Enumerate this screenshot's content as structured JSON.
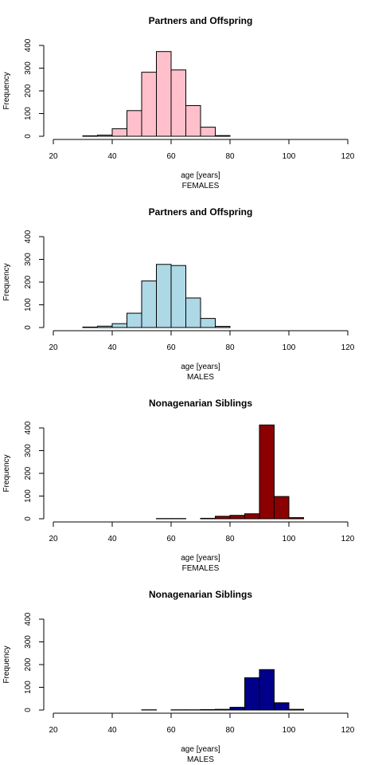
{
  "chart_data": [
    {
      "type": "bar",
      "title": "Partners and Offspring",
      "xlabel": "age [years]",
      "subtitle": "FEMALES",
      "ylabel": "Frequency",
      "xlim": [
        20,
        120
      ],
      "ylim": [
        0,
        400
      ],
      "xticks": [
        20,
        40,
        60,
        80,
        100,
        120
      ],
      "yticks": [
        0,
        100,
        200,
        300,
        400
      ],
      "bin_width": 5,
      "bar_color": "#FFC0CB",
      "bins": [
        {
          "x0": 30,
          "x1": 35,
          "value": 2
        },
        {
          "x0": 35,
          "x1": 40,
          "value": 5
        },
        {
          "x0": 40,
          "x1": 45,
          "value": 33
        },
        {
          "x0": 45,
          "x1": 50,
          "value": 113
        },
        {
          "x0": 50,
          "x1": 55,
          "value": 282
        },
        {
          "x0": 55,
          "x1": 60,
          "value": 373
        },
        {
          "x0": 60,
          "x1": 65,
          "value": 292
        },
        {
          "x0": 65,
          "x1": 70,
          "value": 135
        },
        {
          "x0": 70,
          "x1": 75,
          "value": 40
        },
        {
          "x0": 75,
          "x1": 80,
          "value": 3
        }
      ]
    },
    {
      "type": "bar",
      "title": "Partners and Offspring",
      "xlabel": "age [years]",
      "subtitle": "MALES",
      "ylabel": "Frequency",
      "xlim": [
        20,
        120
      ],
      "ylim": [
        0,
        400
      ],
      "xticks": [
        20,
        40,
        60,
        80,
        100,
        120
      ],
      "yticks": [
        0,
        100,
        200,
        300,
        400
      ],
      "bin_width": 5,
      "bar_color": "#ADD8E6",
      "bins": [
        {
          "x0": 30,
          "x1": 35,
          "value": 2
        },
        {
          "x0": 35,
          "x1": 40,
          "value": 6
        },
        {
          "x0": 40,
          "x1": 45,
          "value": 17
        },
        {
          "x0": 45,
          "x1": 50,
          "value": 63
        },
        {
          "x0": 50,
          "x1": 55,
          "value": 205
        },
        {
          "x0": 55,
          "x1": 60,
          "value": 278
        },
        {
          "x0": 60,
          "x1": 65,
          "value": 273
        },
        {
          "x0": 65,
          "x1": 70,
          "value": 130
        },
        {
          "x0": 70,
          "x1": 75,
          "value": 40
        },
        {
          "x0": 75,
          "x1": 80,
          "value": 5
        }
      ]
    },
    {
      "type": "bar",
      "title": "Nonagenarian Siblings",
      "xlabel": "age [years]",
      "subtitle": "FEMALES",
      "ylabel": "Frequency",
      "xlim": [
        20,
        120
      ],
      "ylim": [
        0,
        400
      ],
      "xticks": [
        20,
        40,
        60,
        80,
        100,
        120
      ],
      "yticks": [
        0,
        100,
        200,
        300,
        400
      ],
      "bin_width": 5,
      "bar_color": "#8B0000",
      "bins": [
        {
          "x0": 55,
          "x1": 60,
          "value": 1
        },
        {
          "x0": 60,
          "x1": 65,
          "value": 1
        },
        {
          "x0": 65,
          "x1": 70,
          "value": 0
        },
        {
          "x0": 70,
          "x1": 75,
          "value": 2
        },
        {
          "x0": 75,
          "x1": 80,
          "value": 11
        },
        {
          "x0": 80,
          "x1": 85,
          "value": 15
        },
        {
          "x0": 85,
          "x1": 90,
          "value": 22
        },
        {
          "x0": 90,
          "x1": 95,
          "value": 413
        },
        {
          "x0": 95,
          "x1": 100,
          "value": 98
        },
        {
          "x0": 100,
          "x1": 105,
          "value": 5
        }
      ]
    },
    {
      "type": "bar",
      "title": "Nonagenarian Siblings",
      "xlabel": "age [years]",
      "subtitle": "MALES",
      "ylabel": "Frequency",
      "xlim": [
        20,
        120
      ],
      "ylim": [
        0,
        400
      ],
      "xticks": [
        20,
        40,
        60,
        80,
        100,
        120
      ],
      "yticks": [
        0,
        100,
        200,
        300,
        400
      ],
      "bin_width": 5,
      "bar_color": "#00008B",
      "bins": [
        {
          "x0": 50,
          "x1": 55,
          "value": 1
        },
        {
          "x0": 55,
          "x1": 60,
          "value": 0
        },
        {
          "x0": 60,
          "x1": 65,
          "value": 1
        },
        {
          "x0": 65,
          "x1": 70,
          "value": 1
        },
        {
          "x0": 70,
          "x1": 75,
          "value": 2
        },
        {
          "x0": 75,
          "x1": 80,
          "value": 3
        },
        {
          "x0": 80,
          "x1": 85,
          "value": 12
        },
        {
          "x0": 85,
          "x1": 90,
          "value": 142
        },
        {
          "x0": 90,
          "x1": 95,
          "value": 178
        },
        {
          "x0": 95,
          "x1": 100,
          "value": 32
        },
        {
          "x0": 100,
          "x1": 105,
          "value": 3
        }
      ]
    }
  ]
}
